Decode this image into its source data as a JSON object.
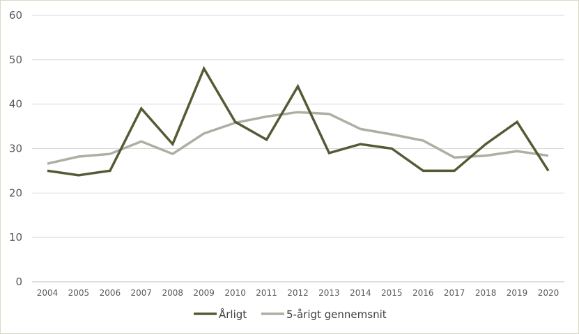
{
  "chart_data": {
    "type": "line",
    "title": "",
    "xlabel": "",
    "ylabel": "",
    "ylim": [
      0,
      60
    ],
    "yticks": [
      0,
      10,
      20,
      30,
      40,
      50,
      60
    ],
    "grid": true,
    "legend_position": "bottom",
    "categories": [
      "2004",
      "2005",
      "2006",
      "2007",
      "2008",
      "2009",
      "2010",
      "2011",
      "2012",
      "2013",
      "2014",
      "2015",
      "2016",
      "2017",
      "2018",
      "2019",
      "2020"
    ],
    "series": [
      {
        "name": "Årligt",
        "color": "#545b34",
        "values": [
          25,
          24,
          25,
          39,
          31,
          48,
          36,
          32,
          44,
          29,
          31,
          30,
          25,
          25,
          31,
          36,
          25
        ]
      },
      {
        "name": "5-årigt gennemsnit",
        "color": "#aeaea3",
        "values": [
          26.6,
          28.2,
          28.8,
          31.6,
          28.8,
          33.4,
          35.8,
          37.2,
          38.2,
          37.8,
          34.4,
          33.2,
          31.8,
          28,
          28.4,
          29.4,
          28.4
        ]
      }
    ]
  }
}
